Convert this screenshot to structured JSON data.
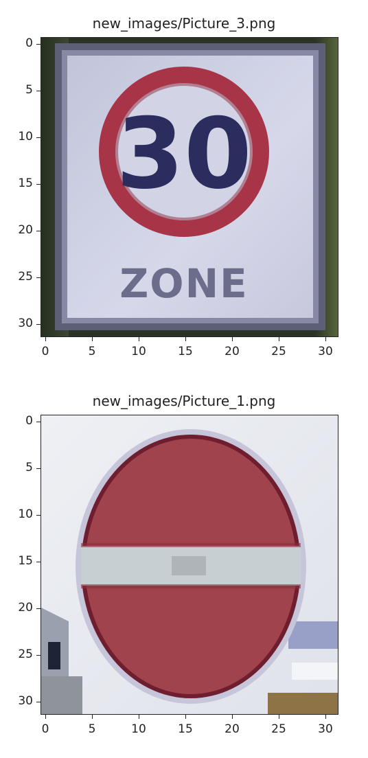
{
  "panels": [
    {
      "title": "new_images/Picture_3.png",
      "subject": "speed-limit-30-zone-sign",
      "sign_text": "30",
      "zone_text": "ZONE",
      "yticks": [
        "0",
        "5",
        "10",
        "15",
        "20",
        "25",
        "30"
      ],
      "xticks": [
        "0",
        "5",
        "10",
        "15",
        "20",
        "25",
        "30"
      ],
      "colors": {
        "board": "#cfd0e2",
        "border": "#6f6f86",
        "ring": "#a83447",
        "digits": "#2a2d5e",
        "bg_dark": "#2f3a2c"
      }
    },
    {
      "title": "new_images/Picture_1.png",
      "subject": "no-entry-sign",
      "yticks": [
        "0",
        "5",
        "10",
        "15",
        "20",
        "25",
        "30"
      ],
      "xticks": [
        "0",
        "5",
        "10",
        "15",
        "20",
        "25",
        "30"
      ],
      "colors": {
        "disc": "#a0434c",
        "bar": "#c8cfd3",
        "rim": "#6e1e2e",
        "bg": "#e8eaf0"
      }
    }
  ]
}
